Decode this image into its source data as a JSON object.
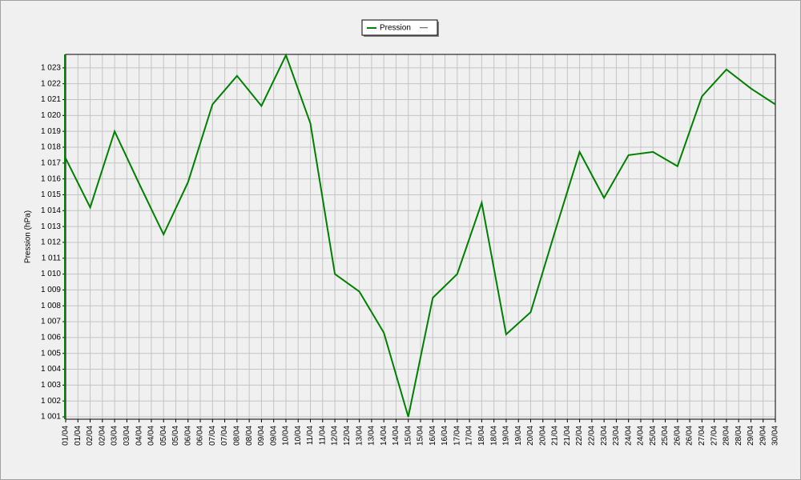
{
  "chart_data": {
    "type": "line",
    "y_label": "Pression (hPa)",
    "legend": {
      "entries": [
        "Pression"
      ],
      "extra": "—",
      "position": "top-center"
    },
    "x_labels": [
      "01/04",
      "01/04",
      "02/04",
      "02/04",
      "03/04",
      "03/04",
      "04/04",
      "04/04",
      "05/04",
      "05/04",
      "06/04",
      "06/04",
      "07/04",
      "07/04",
      "08/04",
      "08/04",
      "09/04",
      "09/04",
      "10/04",
      "10/04",
      "11/04",
      "11/04",
      "12/04",
      "12/04",
      "13/04",
      "13/04",
      "14/04",
      "14/04",
      "15/04",
      "15/04",
      "16/04",
      "16/04",
      "17/04",
      "17/04",
      "18/04",
      "18/04",
      "19/04",
      "19/04",
      "20/04",
      "20/04",
      "21/04",
      "21/04",
      "22/04",
      "22/04",
      "23/04",
      "23/04",
      "24/04",
      "24/04",
      "25/04",
      "25/04",
      "26/04",
      "26/04",
      "27/04",
      "27/04",
      "28/04",
      "28/04",
      "29/04",
      "29/04",
      "30/04"
    ],
    "series": [
      {
        "name": "Pression",
        "color": "#008000",
        "values": [
          1017.3,
          1014.2,
          1019.0,
          1015.7,
          1012.5,
          1015.8,
          1020.7,
          1022.5,
          1020.6,
          1023.8,
          1019.5,
          1010.0,
          1008.9,
          1006.3,
          1001.0,
          1008.5,
          1010.0,
          1014.5,
          1006.2,
          1007.6,
          1012.7,
          1017.7,
          1014.8,
          1017.5,
          1017.7,
          1016.8,
          1021.2,
          1022.9,
          1021.7,
          1020.7
        ]
      }
    ],
    "ylim": [
      1000.85,
      1023.85
    ],
    "yticks": [
      {
        "value": 1001,
        "label": "1 001"
      },
      {
        "value": 1002,
        "label": "1 002"
      },
      {
        "value": 1003,
        "label": "1 003"
      },
      {
        "value": 1004,
        "label": "1 004"
      },
      {
        "value": 1005,
        "label": "1 005"
      },
      {
        "value": 1006,
        "label": "1 006"
      },
      {
        "value": 1007,
        "label": "1 007"
      },
      {
        "value": 1008,
        "label": "1 008"
      },
      {
        "value": 1009,
        "label": "1 009"
      },
      {
        "value": 1010,
        "label": "1 010"
      },
      {
        "value": 1011,
        "label": "1 011"
      },
      {
        "value": 1012,
        "label": "1 012"
      },
      {
        "value": 1013,
        "label": "1 013"
      },
      {
        "value": 1014,
        "label": "1 014"
      },
      {
        "value": 1015,
        "label": "1 015"
      },
      {
        "value": 1016,
        "label": "1 016"
      },
      {
        "value": 1017,
        "label": "1 017"
      },
      {
        "value": 1018,
        "label": "1 018"
      },
      {
        "value": 1019,
        "label": "1 019"
      },
      {
        "value": 1020,
        "label": "1 020"
      },
      {
        "value": 1021,
        "label": "1 021"
      },
      {
        "value": 1022,
        "label": "1 022"
      },
      {
        "value": 1023,
        "label": "1 023"
      }
    ],
    "grid": true
  }
}
